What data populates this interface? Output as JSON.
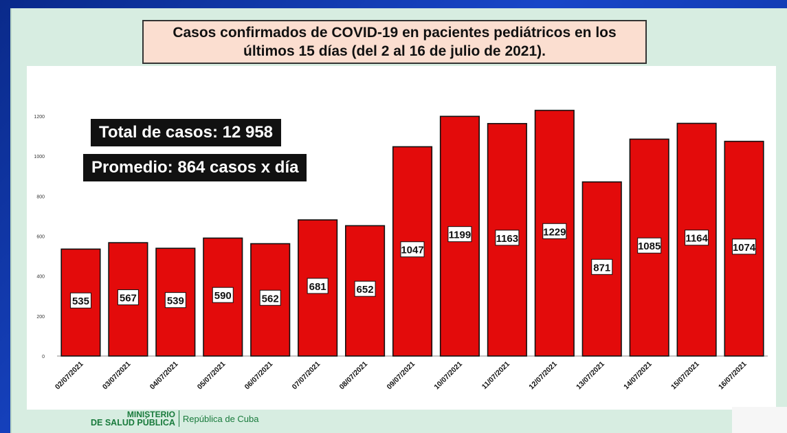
{
  "title": "Casos confirmados de COVID-19 en pacientes pediátricos en los últimos 15 días (del 2 al 16 de julio de 2021).",
  "summary": {
    "total": "Total de casos: 12 958",
    "average": "Promedio: 864  casos x día"
  },
  "footer": {
    "ministry_line1": "MINISTERIO",
    "ministry_line2": "DE SALUD PÚBLICA",
    "republic": "República de Cuba"
  },
  "colors": {
    "bar": "#e30b0b",
    "slide_bg": "#d7ede1",
    "title_bg": "#fbded0"
  },
  "chart_data": {
    "type": "bar",
    "title": "Casos confirmados de COVID-19 en pacientes pediátricos en los últimos 15 días (del 2 al 16 de julio de 2021).",
    "categories": [
      "02/07/2021",
      "03/07/2021",
      "04/07/2021",
      "05/07/2021",
      "06/07/2021",
      "07/07/2021",
      "08/07/2021",
      "09/07/2021",
      "10/07/2021",
      "11/07/2021",
      "12/07/2021",
      "13/07/2021",
      "14/07/2021",
      "15/07/2021",
      "16/07/2021"
    ],
    "values": [
      535,
      567,
      539,
      590,
      562,
      681,
      652,
      1047,
      1199,
      1163,
      1229,
      871,
      1085,
      1164,
      1074
    ],
    "ylim": [
      0,
      1200
    ],
    "yticks": [
      "0",
      "200",
      "400",
      "600",
      "800",
      "1000",
      "1200"
    ],
    "xlabel": "",
    "ylabel": "",
    "grid": false,
    "data_labels": true
  }
}
